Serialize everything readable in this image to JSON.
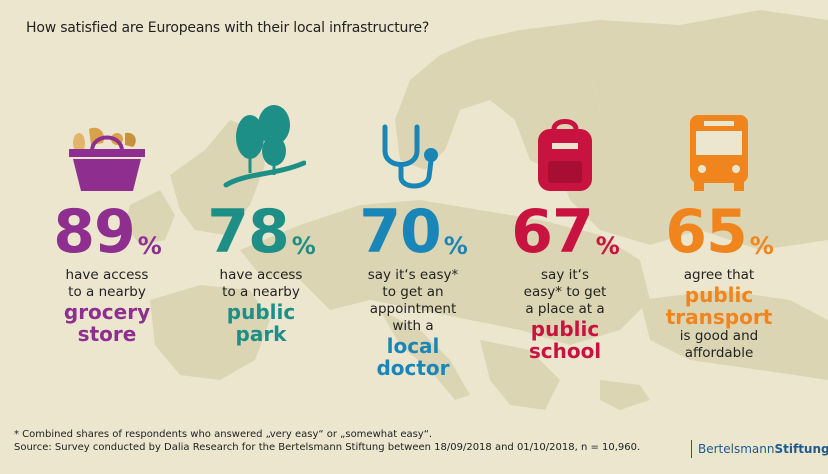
{
  "title": "How satisfied are Europeans with their local infrastructure?",
  "stats": [
    {
      "value": "89",
      "unit": "%",
      "line1": "have access",
      "line2": "to a nearby",
      "hl1": "grocery",
      "hl2": "store",
      "color": "#8e2f8f",
      "icon": "shopping-basket-icon"
    },
    {
      "value": "78",
      "unit": "%",
      "line1": "have access",
      "line2": "to a nearby",
      "hl1": "public",
      "hl2": "park",
      "color": "#1e8f86",
      "icon": "trees-icon"
    },
    {
      "value": "70",
      "unit": "%",
      "line1": "say it‘s easy*",
      "line2": "to get an",
      "line3": "appointment",
      "line4": "with a",
      "hl1": "local",
      "hl2": "doctor",
      "color": "#1a86b8",
      "icon": "stethoscope-icon"
    },
    {
      "value": "67",
      "unit": "%",
      "line1": "say it‘s",
      "line2": "easy* to get",
      "line3": "a place at a",
      "hl1": "public",
      "hl2": "school",
      "color": "#c8123f",
      "icon": "backpack-icon"
    },
    {
      "value": "65",
      "unit": "%",
      "line1": "agree that",
      "hl1": "public",
      "hl2": "transport",
      "line5": "is good and",
      "line6": "affordable",
      "color": "#f0841d",
      "icon": "bus-icon"
    }
  ],
  "footnote": {
    "line1": "* Combined shares of respondents who answered „very easy“ or „somewhat easy“.",
    "line2": "Source: Survey conducted by Dalia Research for the Bertelsmann Stiftung between 18/09/2018 and 01/10/2018, n = 10,960."
  },
  "brand": {
    "part1": "Bertelsmann",
    "part2": "Stiftung"
  }
}
